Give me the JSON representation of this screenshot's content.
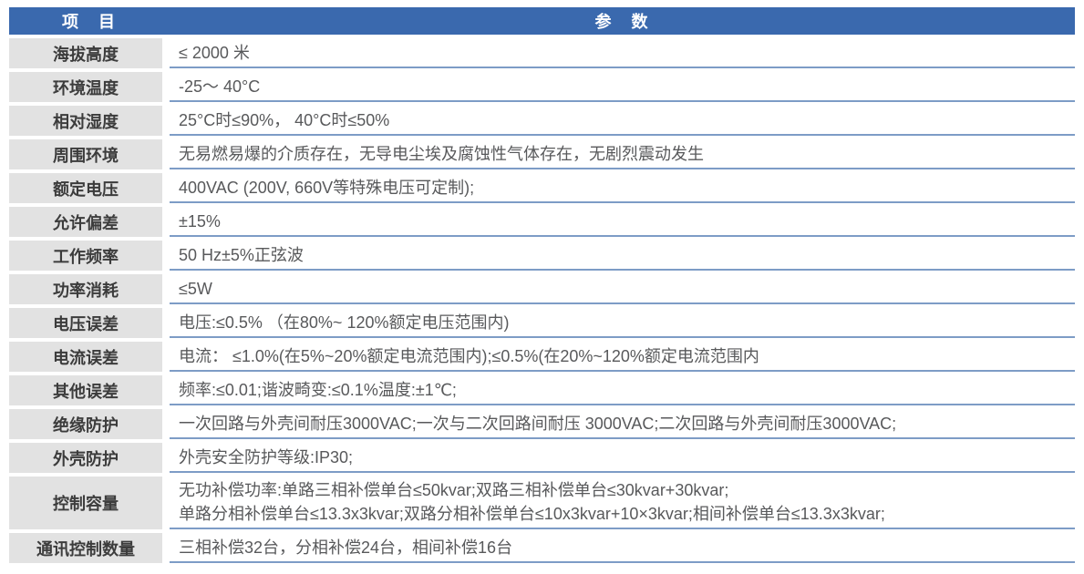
{
  "colors": {
    "page-bg": "#ffffff",
    "header-bg": "#3a69ae",
    "header-text": "#ffffff",
    "label-bg": "#e2e2e2",
    "label-text": "#3c3c3c",
    "value-text": "#58595b",
    "divider": "#7d9cc6"
  },
  "table": {
    "header": {
      "item_label": "项　目",
      "param_label": "参　数"
    },
    "rows": [
      {
        "label": "海拔高度",
        "value": "≤ 2000 米"
      },
      {
        "label": "环境温度",
        "value": "-25～ 40°C"
      },
      {
        "label": "相对湿度",
        "value": "25°C时≤90%， 40°C时≤50%"
      },
      {
        "label": "周围环境",
        "value": "无易燃易爆的介质存在，无导电尘埃及腐蚀性气体存在，无剧烈震动发生"
      },
      {
        "label": "额定电压",
        "value": "400VAC (200V, 660V等特殊电压可定制);"
      },
      {
        "label": "允许偏差",
        "value": "±15%"
      },
      {
        "label": "工作频率",
        "value": "50 Hz±5%正弦波"
      },
      {
        "label": "功率消耗",
        "value": "≤5W"
      },
      {
        "label": "电压误差",
        "value": "电压:≤0.5% （在80%~ 120%额定电压范围内)"
      },
      {
        "label": "电流误差",
        "value": "电流： ≤1.0%(在5%~20%额定电流范围内);≤0.5%(在20%~120%额定电流范围内"
      },
      {
        "label": "其他误差",
        "value": "频率:≤0.01;谐波畸变:≤0.1%温度:±1℃;"
      },
      {
        "label": "绝缘防护",
        "value": "一次回路与外壳间耐压3000VAC;一次与二次回路间耐压 3000VAC;二次回路与外壳间耐压3000VAC;"
      },
      {
        "label": "外壳防护",
        "value": "外壳安全防护等级:IP30;"
      },
      {
        "label": "控制容量",
        "value": "无功补偿功率:单路三相补偿单台≤50kvar;双路三相补偿单台≤30kvar+30kvar;\n单路分相补偿单台≤13.3x3kvar;双路分相补偿单台≤10x3kvar+10×3kvar;相间补偿单台≤13.3x3kvar;"
      },
      {
        "label": "通讯控制数量",
        "value": "三相补偿32台，分相补偿24台，相间补偿16台"
      }
    ]
  }
}
